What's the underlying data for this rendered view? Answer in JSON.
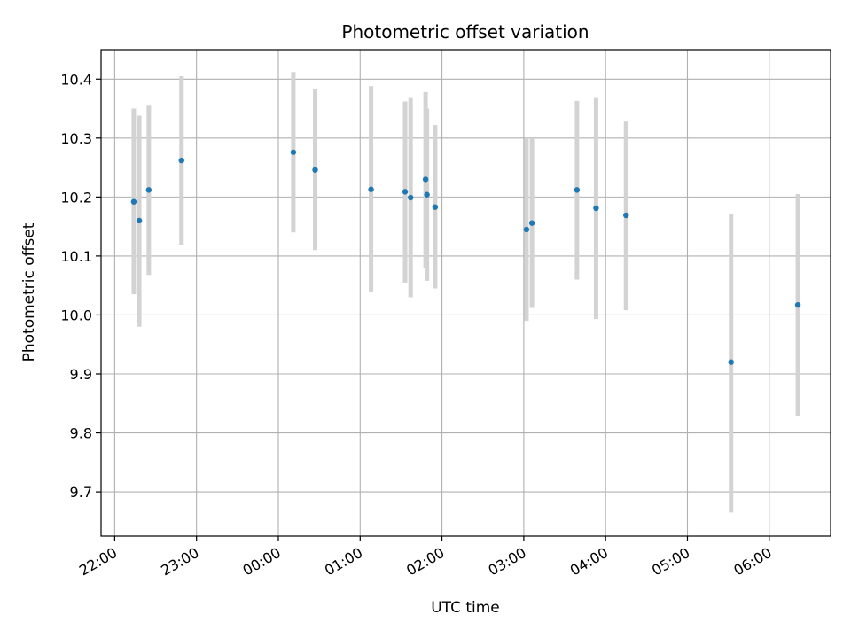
{
  "chart_data": {
    "type": "scatter",
    "title": "Photometric offset variation",
    "xlabel": "UTC time",
    "ylabel": "Photometric offset",
    "grid": true,
    "xlim": [
      "21:50",
      "06:45"
    ],
    "ylim": [
      9.625,
      10.45
    ],
    "x_ticks": [
      "22:00",
      "23:00",
      "00:00",
      "01:00",
      "02:00",
      "03:00",
      "04:00",
      "05:00",
      "06:00"
    ],
    "y_ticks": [
      "9.7",
      "9.8",
      "9.9",
      "10.0",
      "10.1",
      "10.2",
      "10.3",
      "10.4"
    ],
    "point_color": "#1f77b4",
    "errorbar_color": "#d3d3d3",
    "points": [
      {
        "time": "22:14",
        "y": 10.192,
        "err_low": 10.035,
        "err_high": 10.35
      },
      {
        "time": "22:18",
        "y": 10.16,
        "err_low": 9.98,
        "err_high": 10.338
      },
      {
        "time": "22:25",
        "y": 10.212,
        "err_low": 10.068,
        "err_high": 10.355
      },
      {
        "time": "22:49",
        "y": 10.262,
        "err_low": 10.118,
        "err_high": 10.405
      },
      {
        "time": "00:11",
        "y": 10.276,
        "err_low": 10.14,
        "err_high": 10.412
      },
      {
        "time": "00:27",
        "y": 10.246,
        "err_low": 10.11,
        "err_high": 10.383
      },
      {
        "time": "01:08",
        "y": 10.213,
        "err_low": 10.04,
        "err_high": 10.388
      },
      {
        "time": "01:33",
        "y": 10.209,
        "err_low": 10.055,
        "err_high": 10.362
      },
      {
        "time": "01:37",
        "y": 10.199,
        "err_low": 10.03,
        "err_high": 10.368
      },
      {
        "time": "01:48",
        "y": 10.23,
        "err_low": 10.08,
        "err_high": 10.378
      },
      {
        "time": "01:49",
        "y": 10.204,
        "err_low": 10.058,
        "err_high": 10.35
      },
      {
        "time": "01:55",
        "y": 10.183,
        "err_low": 10.045,
        "err_high": 10.322
      },
      {
        "time": "03:02",
        "y": 10.145,
        "err_low": 9.99,
        "err_high": 10.3
      },
      {
        "time": "03:06",
        "y": 10.156,
        "err_low": 10.012,
        "err_high": 10.3
      },
      {
        "time": "03:39",
        "y": 10.212,
        "err_low": 10.06,
        "err_high": 10.363
      },
      {
        "time": "03:53",
        "y": 10.181,
        "err_low": 9.993,
        "err_high": 10.368
      },
      {
        "time": "04:15",
        "y": 10.169,
        "err_low": 10.008,
        "err_high": 10.328
      },
      {
        "time": "05:32",
        "y": 9.92,
        "err_low": 9.665,
        "err_high": 10.172
      },
      {
        "time": "06:21",
        "y": 10.017,
        "err_low": 9.828,
        "err_high": 10.205
      }
    ]
  }
}
